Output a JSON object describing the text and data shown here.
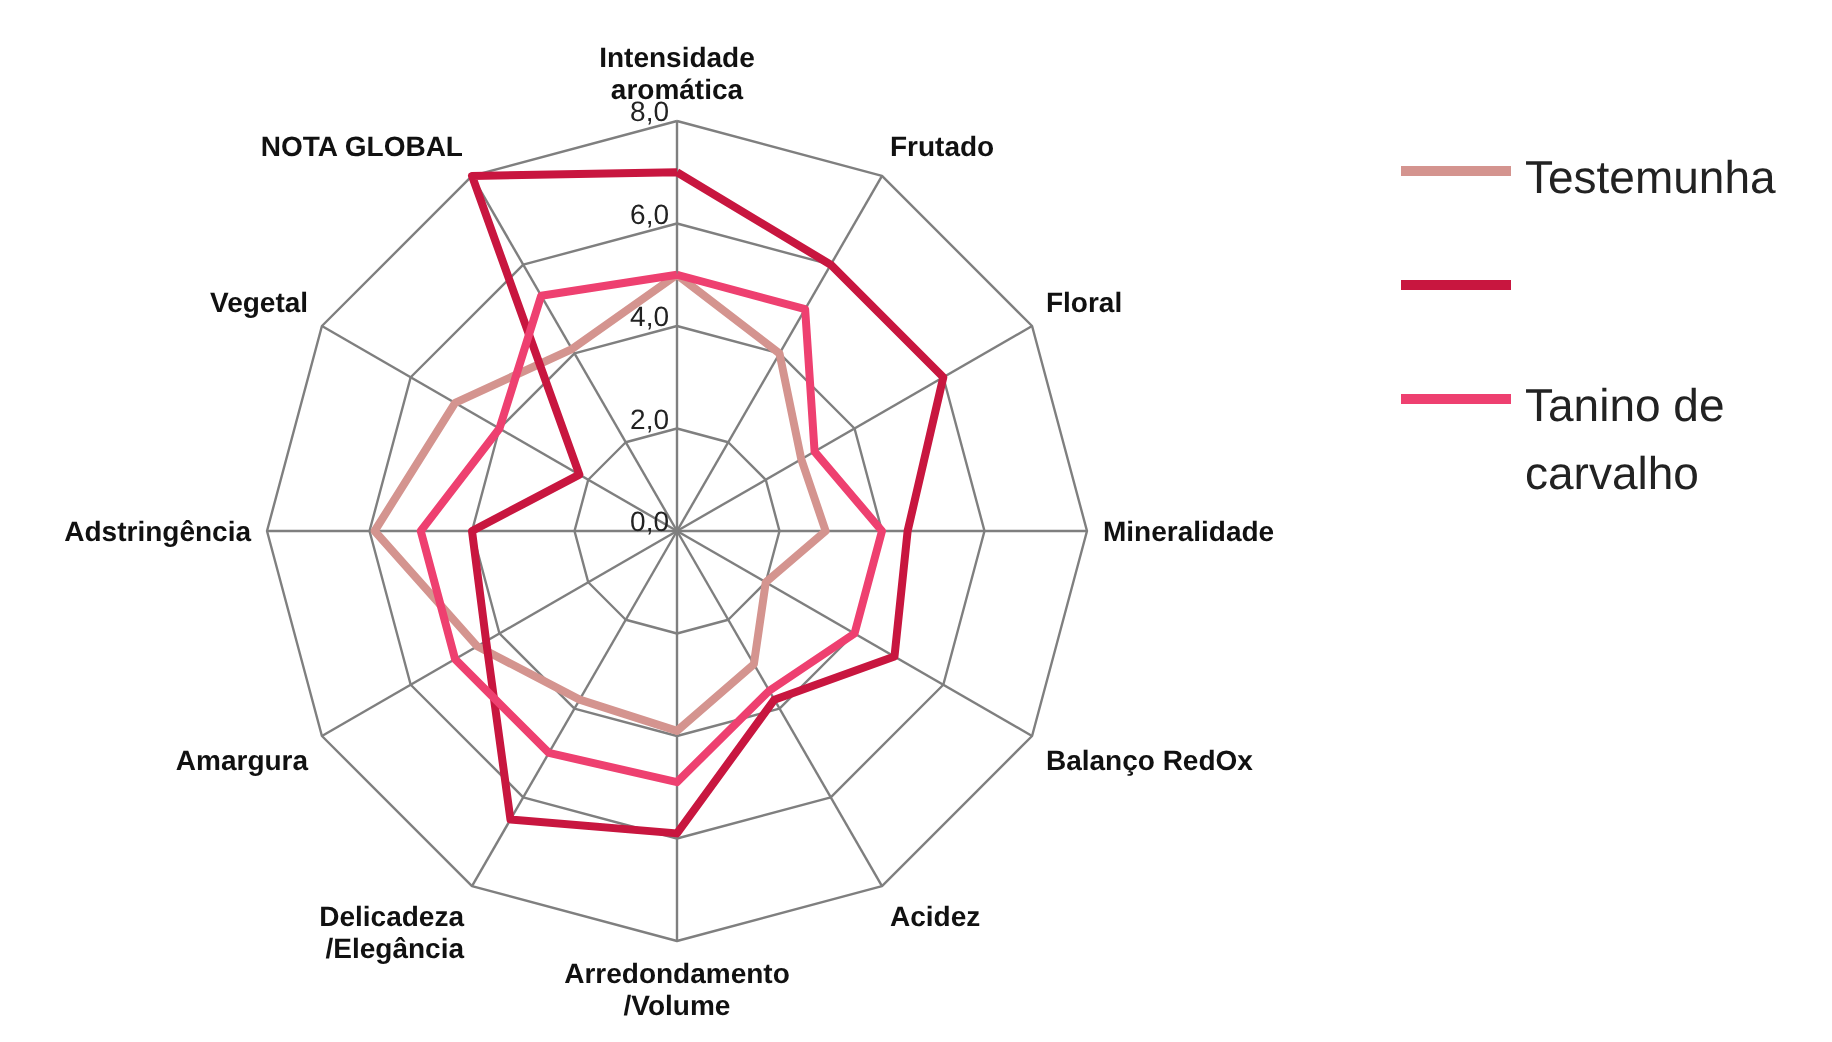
{
  "chart_data": {
    "type": "radar",
    "categories": [
      "Intensidade\naromática",
      "Frutado",
      "Floral",
      "Mineralidade",
      "Balanço RedOx",
      "Acidez",
      "Arredondamento\n/Volume",
      "Delicadeza\n/Elegância",
      "Amargura",
      "Adstringência",
      "Vegetal",
      "NOTA GLOBAL"
    ],
    "series": [
      {
        "name": "Testemunha",
        "color": "#d4948f",
        "values": [
          5.0,
          4.0,
          2.8,
          2.9,
          2.0,
          3.0,
          3.9,
          3.8,
          4.5,
          5.9,
          5.0,
          4.1
        ]
      },
      {
        "color": "#c8163f",
        "values": [
          7.0,
          6.0,
          6.0,
          4.5,
          4.9,
          3.8,
          5.9,
          6.5,
          4.3,
          4.0,
          2.2,
          8.0
        ]
      },
      {
        "name": "Tanino de\ncarvalho",
        "color": "#ee4070",
        "values": [
          5.0,
          5.0,
          3.1,
          4.0,
          4.0,
          3.6,
          4.9,
          5.0,
          5.0,
          5.0,
          4.0,
          5.3
        ]
      }
    ],
    "ylim": [
      0,
      8
    ],
    "yticks": [
      {
        "value": 0,
        "label": "0,0"
      },
      {
        "value": 2,
        "label": "2,0"
      },
      {
        "value": 4,
        "label": "4,0"
      },
      {
        "value": 6,
        "label": "6,0"
      },
      {
        "value": 8,
        "label": "8,0"
      }
    ],
    "grid": true,
    "legend": "right"
  }
}
